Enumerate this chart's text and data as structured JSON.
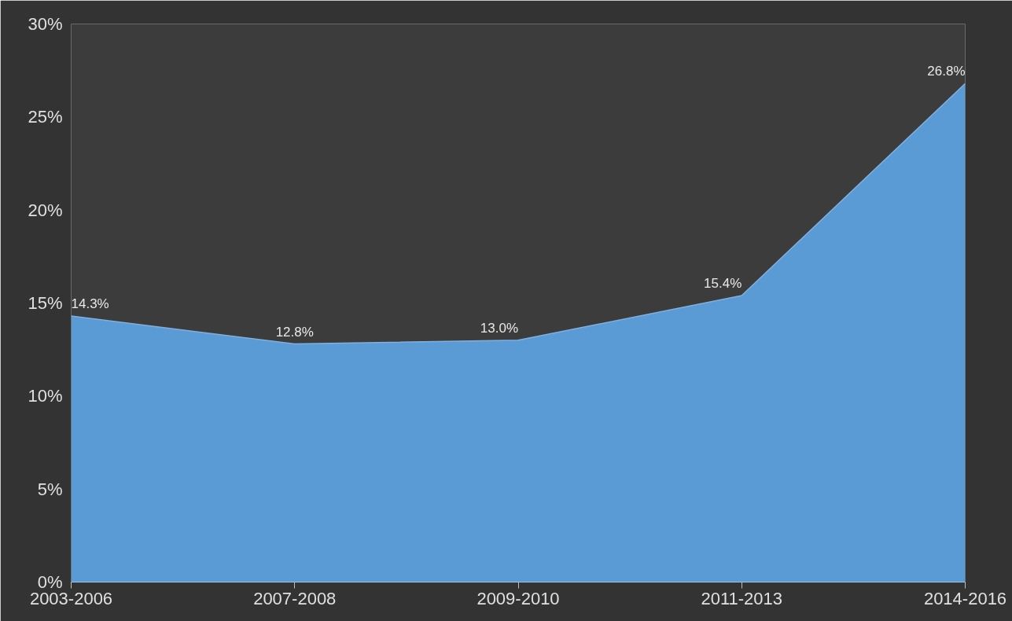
{
  "chart_data": {
    "type": "area",
    "categories": [
      "2003-2006",
      "2007-2008",
      "2009-2010",
      "2011-2013",
      "2014-2016"
    ],
    "series": [
      {
        "color": "#5b9bd5",
        "values": [
          14.3,
          12.8,
          13.0,
          15.4,
          26.8
        ],
        "value_labels": [
          "14.3%",
          "12.8%",
          "13.0%",
          "15.4%",
          "26.8%"
        ]
      }
    ],
    "ylim": [
      0,
      30
    ],
    "yticks": [
      {
        "value": 0,
        "label": "0%"
      },
      {
        "value": 5,
        "label": "5%"
      },
      {
        "value": 10,
        "label": "10%"
      },
      {
        "value": 15,
        "label": "15%"
      },
      {
        "value": 20,
        "label": "20%"
      },
      {
        "value": 25,
        "label": "25%"
      },
      {
        "value": 30,
        "label": "30%"
      }
    ],
    "grid": false
  }
}
